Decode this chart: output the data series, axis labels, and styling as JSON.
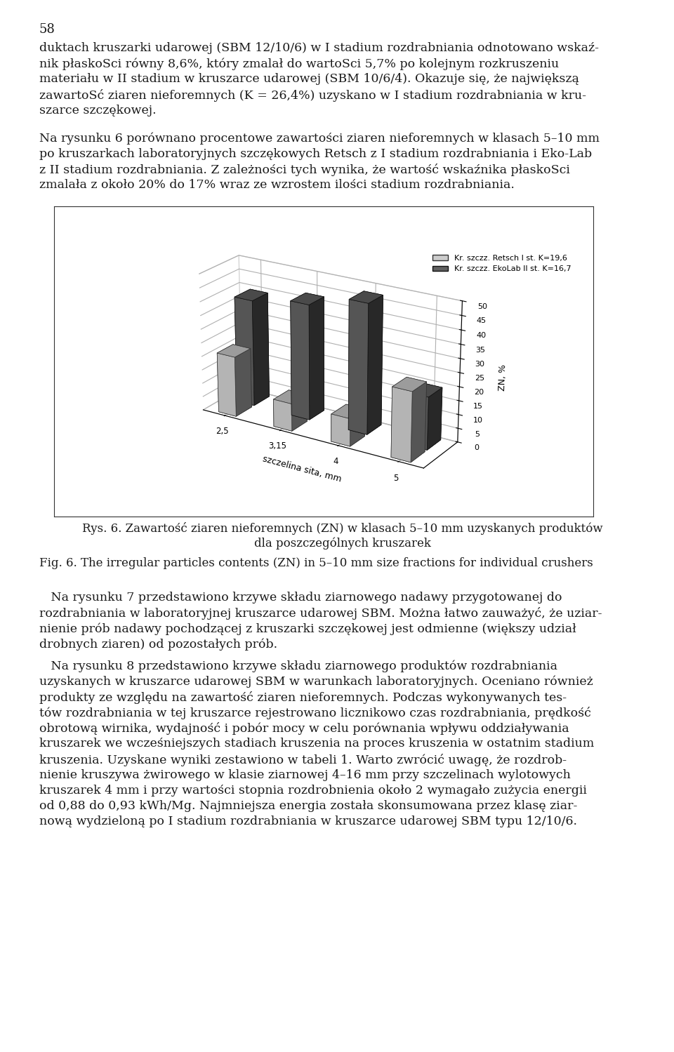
{
  "page_width": 9.6,
  "page_height": 14.99,
  "dpi": 100,
  "bg_color": "#ffffff",
  "text_color": "#1a1a1a",
  "page_number": "58",
  "para1": "duktach kruszarki udarowej (SBM 12/10/6) w I stadium rozdrabniania odnotowano wskaź-\nnik płaskoSci równy 8,6%, który zmalał do wartoSci 5,7% po kolejnym rozkruszeniu\nmateriału w II stadium w kruszarce udarowej (SBM 10/6/4). Okazuje się, że największą\nzawartoSć ziaren nieforemnych (K = 26,4%) uzyskano w I stadium rozdrabniania w kru-\nszarce szczękowej.",
  "para2": "Na rysunku 6 porównano procentowe zawartości ziaren nieforemnych w klasach 5–10 mm\npo kruszarkach laboratoryjnych szczękowych Retsch z I stadium rozdrabniania i Eko-Lab\nz II stadium rozdrabniania. Z zależności tych wynika, że wartość wskaźnika płaskoSci\nzmalała z około 20% do 17% wraz ze wzrostem ilości stadium rozdrabniania.",
  "caption_pl": "Rys. 6. Zawartość ziaren nieforemnych (ZN) w klasach 5–10 mm uzyskanych produktów\ndla poszczególnych kruszarek",
  "caption_en": "Fig. 6. The irregular particles contents (ZN) in 5–10 mm size fractions for individual crushers",
  "para3": "   Na rysunku 7 przedstawiono krzywe składu ziarnowego nadawy przygotowanej do\nrozdrabniania w laboratoryjnej kruszarce udarowej SBM. Można łatwo zauważyć, że uziar-\nnienie prób nadawy pochodzącej z kruszarki szczękowej jest odmienne (większy udział\ndrobnych ziaren) od pozostałych prób.",
  "para4": "   Na rysunku 8 przedstawiono krzywe składu ziarnowego produktów rozdrabniania\nuzyskanych w kruszarce udarowej SBM w warunkach laboratoryjnych. Oceniano również\nprodukty ze względu na zawartość ziaren nieforemnych. Podczas wykonywanych tes-\ntów rozdrabniania w tej kruszarce rejestrowano licznikowo czas rozdrabniania, prędkość\nobrotową wirnika, wydajność i pobór mocy w celu porównania wpływu oddziaływania\nkruszarek we wcześniejszych stadiach kruszenia na proces kruszenia w ostatnim stadium\nkruszenia. Uzyskane wyniki zestawiono w tabeli 1. Warto zwrócić uwagę, że rozdrob-\nnienie kruszywa żwirowego w klasie ziarnowej 4–16 mm przy szczelinach wylotowych\nkruszarek 4 mm i przy wartości stopnia rozdrobnienia około 2 wymagało zużycia energii\nod 0,88 do 0,93 kWh/Mg. Najmniejsza energia została skonsumowana przez klasę ziar-\nnową wydzieloną po I stadium rozdrabniania w kruszarce udarowej SBM typu 12/10/6.",
  "category_labels": [
    "2,5",
    "3,15",
    "4",
    "5"
  ],
  "series1_label": "Kr. szczz. Retsch I st. K=19,6",
  "series2_label": "Kr. szczz. EkoLab II st. K=16,7",
  "series1_values": [
    22.0,
    10.0,
    10.0,
    25.0
  ],
  "series2_values": [
    39.0,
    42.0,
    47.0,
    19.0
  ],
  "series1_color": "#cccccc",
  "series2_color": "#606060",
  "ylabel": "ZN, %",
  "xlabel": "szczelina sita, mm",
  "zticks": [
    0.0,
    5.0,
    10.0,
    15.0,
    20.0,
    25.0,
    30.0,
    35.0,
    40.0,
    45.0,
    50.0
  ],
  "zlim": [
    0,
    50
  ]
}
